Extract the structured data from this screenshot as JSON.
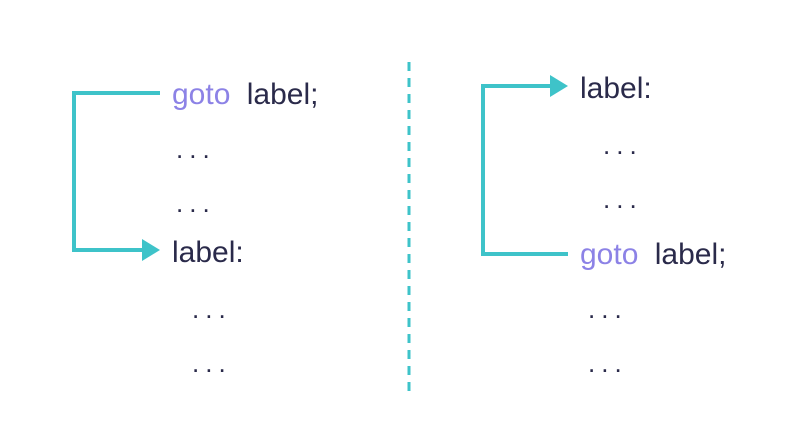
{
  "colors": {
    "background": "#ffffff",
    "text": "#2a2a4a",
    "keyword": "#8c82e6",
    "arrow": "#3ec3c9",
    "divider": "#3ec3c9"
  },
  "left": {
    "goto_keyword": "goto",
    "goto_target": "label;",
    "dots_1": "...",
    "dots_2": "...",
    "label": "label:",
    "dots_3": "...",
    "dots_4": "..."
  },
  "right": {
    "label": "label:",
    "dots_1": "...",
    "dots_2": "...",
    "goto_keyword": "goto",
    "goto_target": "label;",
    "dots_3": "...",
    "dots_4": "..."
  }
}
